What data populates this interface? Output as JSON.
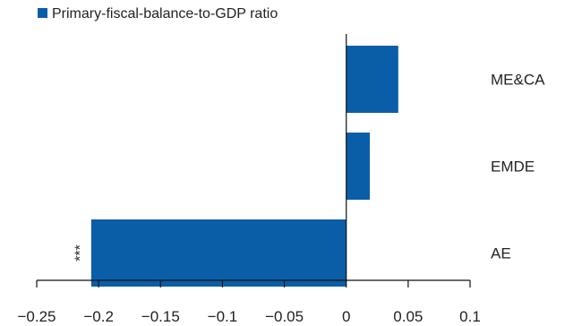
{
  "chart_data": {
    "type": "bar",
    "orientation": "horizontal",
    "title": "",
    "xlabel": "",
    "ylabel": "",
    "categories": [
      "ME&CA",
      "EMDE",
      "AE"
    ],
    "series": [
      {
        "name": "Primary-fiscal-balance-to-GDP ratio",
        "values": [
          0.042,
          0.019,
          -0.206
        ]
      }
    ],
    "annotations": [
      {
        "category": "AE",
        "text": "***"
      }
    ],
    "xlim": [
      -0.25,
      0.1
    ],
    "xticks": [
      -0.25,
      -0.2,
      -0.15,
      -0.1,
      -0.05,
      0,
      0.05,
      0.1
    ],
    "xtick_labels": [
      "−0.25",
      "−0.2",
      "−0.15",
      "−0.1",
      "−0.05",
      "0",
      "0.05",
      "0.1"
    ],
    "bar_color": "#0a5ea8",
    "legend_position": "top-left",
    "grid": false
  }
}
